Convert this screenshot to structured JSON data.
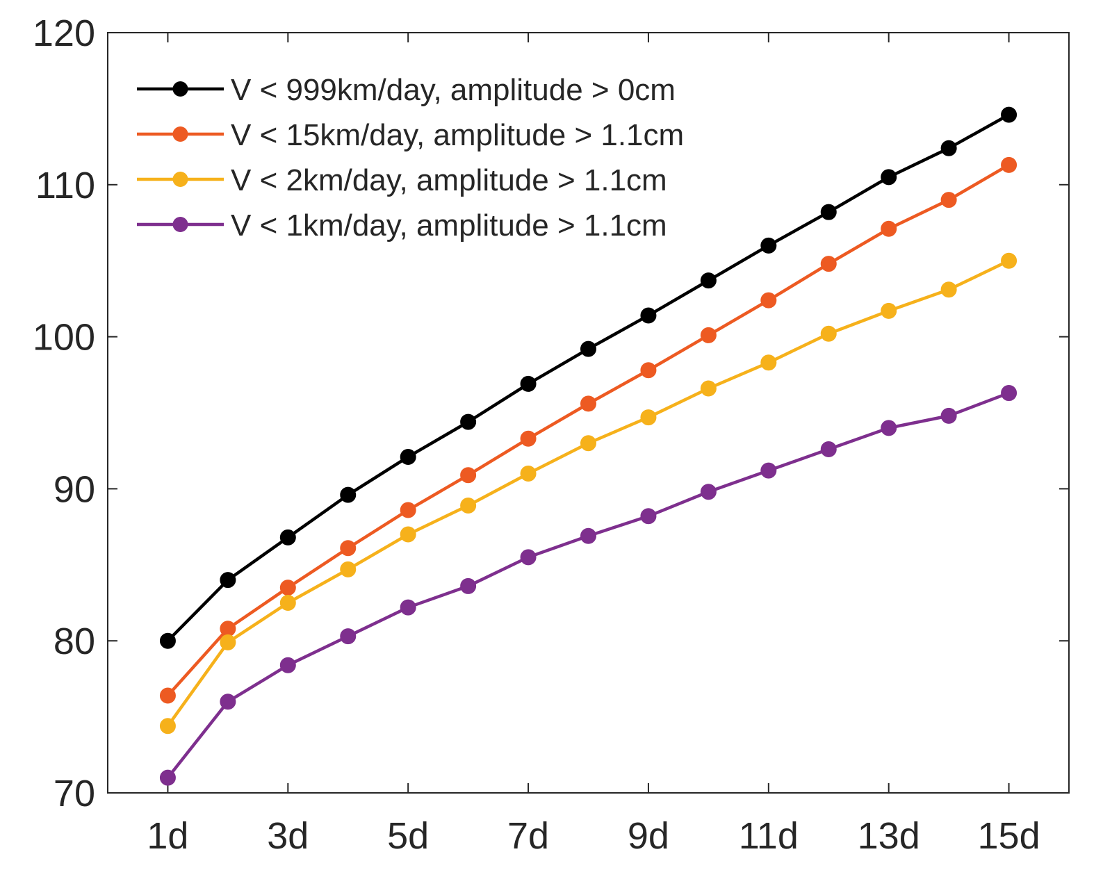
{
  "chart_data": {
    "type": "line",
    "title": "",
    "xlabel": "",
    "ylabel": "",
    "x": [
      1,
      2,
      3,
      4,
      5,
      6,
      7,
      8,
      9,
      10,
      11,
      12,
      13,
      14,
      15
    ],
    "xlim": [
      0.0,
      16.0
    ],
    "ylim": [
      70,
      120
    ],
    "xticks": [
      1,
      3,
      5,
      7,
      9,
      11,
      13,
      15
    ],
    "xtick_labels": [
      "1d",
      "3d",
      "5d",
      "7d",
      "9d",
      "11d",
      "13d",
      "15d"
    ],
    "yticks": [
      70,
      80,
      90,
      100,
      110,
      120
    ],
    "ytick_labels": [
      "70",
      "80",
      "90",
      "100",
      "110",
      "120"
    ],
    "grid": false,
    "legend_position": "top-left",
    "series": [
      {
        "name": "V < 999km/day, amplitude > 0cm",
        "color": "#000000",
        "values": [
          80.0,
          84.0,
          86.8,
          89.6,
          92.1,
          94.4,
          96.9,
          99.2,
          101.4,
          103.7,
          106.0,
          108.2,
          110.5,
          112.4,
          114.6
        ]
      },
      {
        "name": "V < 15km/day, amplitude > 1.1cm",
        "color": "#ED5A22",
        "values": [
          76.4,
          80.8,
          83.5,
          86.1,
          88.6,
          90.9,
          93.3,
          95.6,
          97.8,
          100.1,
          102.4,
          104.8,
          107.1,
          109.0,
          111.3
        ]
      },
      {
        "name": "V < 2km/day, amplitude > 1.1cm",
        "color": "#F6B11B",
        "values": [
          74.4,
          79.9,
          82.5,
          84.7,
          87.0,
          88.9,
          91.0,
          93.0,
          94.7,
          96.6,
          98.3,
          100.2,
          101.7,
          103.1,
          105.0
        ]
      },
      {
        "name": "V < 1km/day, amplitude > 1.1cm",
        "color": "#7E2F8E",
        "values": [
          71.0,
          76.0,
          78.4,
          80.3,
          82.2,
          83.6,
          85.5,
          86.9,
          88.2,
          89.8,
          91.2,
          92.6,
          94.0,
          94.8,
          96.3
        ]
      }
    ]
  }
}
